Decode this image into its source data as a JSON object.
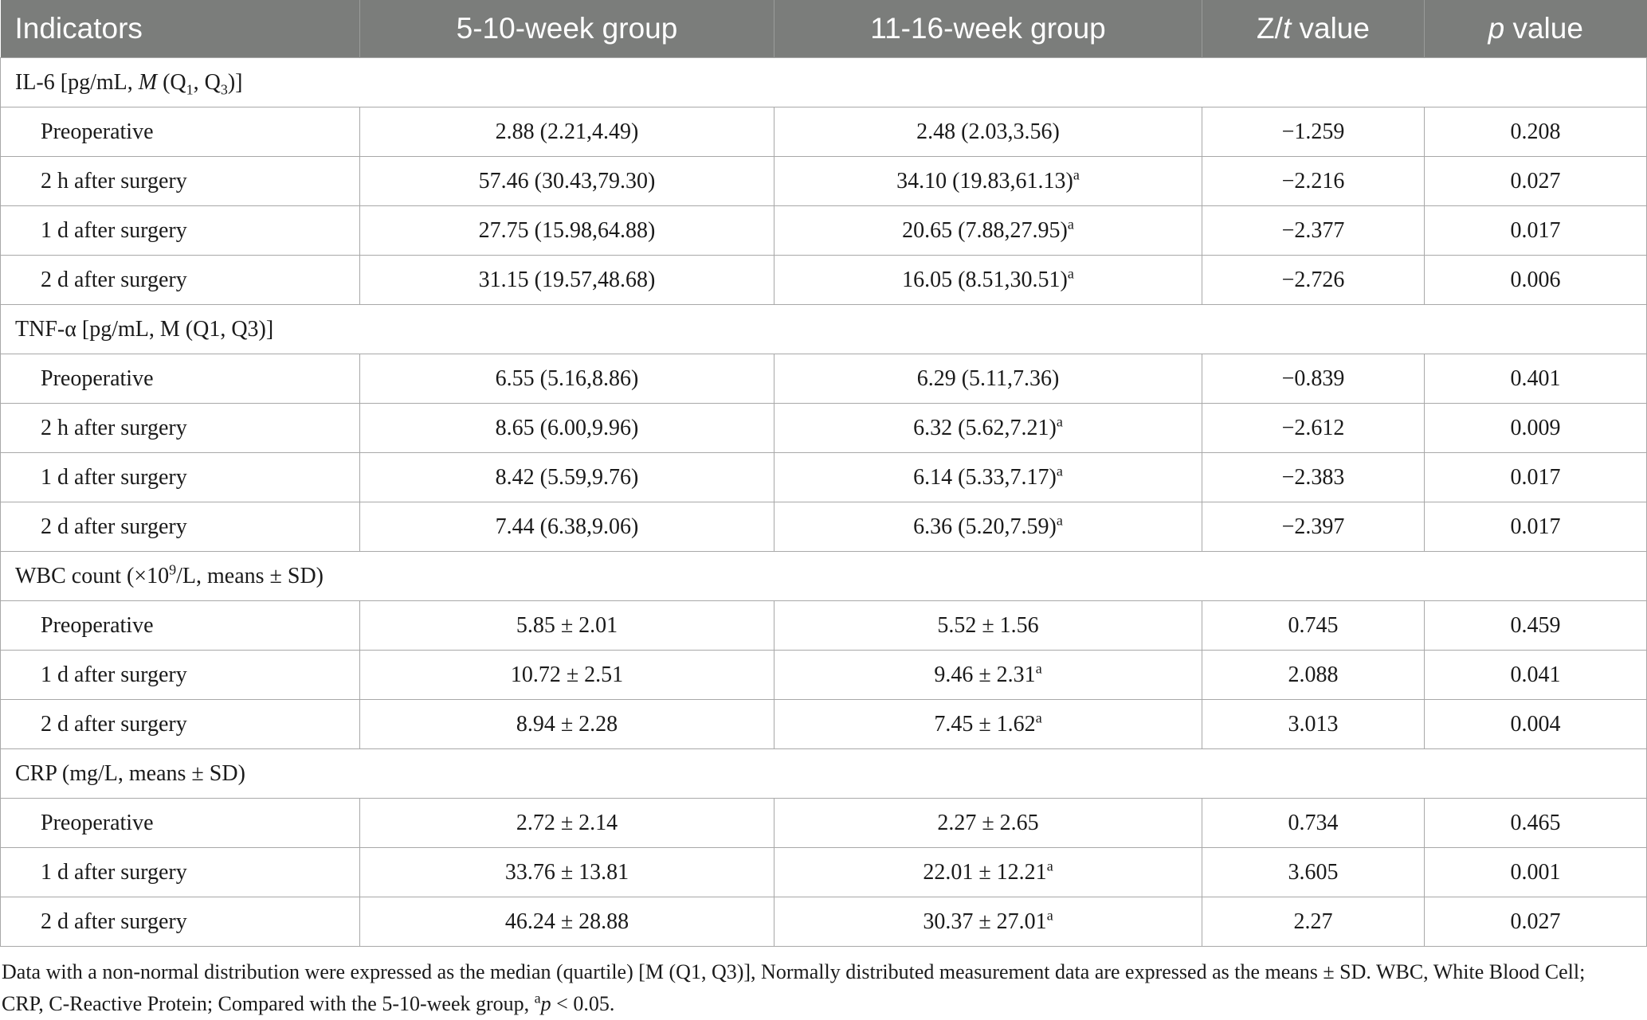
{
  "table": {
    "headers": {
      "indicators": "Indicators",
      "group_a": "5-10-week group",
      "group_b": "11-16-week group",
      "stat_z": "Z/",
      "stat_t": "t",
      "stat_value": " value",
      "p_italic": "p",
      "p_value": " value"
    },
    "sections": [
      {
        "title_parts": {
          "a": "IL-6 [pg/mL, ",
          "m": "M",
          "b": " (Q",
          "s1": "1",
          "c": ", Q",
          "s3": "3",
          "d": ")]"
        },
        "rows": [
          {
            "label": "Preoperative",
            "g1": "2.88 (2.21,4.49)",
            "g2": "2.48 (2.03,3.56)",
            "sup": "",
            "stat": "−1.259",
            "p": "0.208"
          },
          {
            "label": "2 h after surgery",
            "g1": "57.46 (30.43,79.30)",
            "g2": "34.10 (19.83,61.13)",
            "sup": "a",
            "stat": "−2.216",
            "p": "0.027"
          },
          {
            "label": "1 d after surgery",
            "g1": "27.75 (15.98,64.88)",
            "g2": "20.65 (7.88,27.95)",
            "sup": "a",
            "stat": "−2.377",
            "p": "0.017"
          },
          {
            "label": "2 d after surgery",
            "g1": "31.15 (19.57,48.68)",
            "g2": "16.05 (8.51,30.51)",
            "sup": "a",
            "stat": "−2.726",
            "p": "0.006"
          }
        ]
      },
      {
        "title": "TNF-α [pg/mL, M (Q1, Q3)]",
        "rows": [
          {
            "label": "Preoperative",
            "g1": "6.55 (5.16,8.86)",
            "g2": "6.29 (5.11,7.36)",
            "sup": "",
            "stat": "−0.839",
            "p": "0.401"
          },
          {
            "label": "2 h after surgery",
            "g1": "8.65 (6.00,9.96)",
            "g2": "6.32 (5.62,7.21)",
            "sup": "a",
            "stat": "−2.612",
            "p": "0.009"
          },
          {
            "label": "1 d after surgery",
            "g1": "8.42 (5.59,9.76)",
            "g2": "6.14 (5.33,7.17)",
            "sup": "a",
            "stat": "−2.383",
            "p": "0.017"
          },
          {
            "label": "2 d after surgery",
            "g1": "7.44 (6.38,9.06)",
            "g2": "6.36 (5.20,7.59)",
            "sup": "a",
            "stat": "−2.397",
            "p": "0.017"
          }
        ]
      },
      {
        "title_parts": {
          "a": "WBC count (×10",
          "sup": "9",
          "b": "/L, means ± SD)"
        },
        "rows": [
          {
            "label": "Preoperative",
            "g1": "5.85 ± 2.01",
            "g2": "5.52 ± 1.56",
            "sup": "",
            "stat": "0.745",
            "p": "0.459"
          },
          {
            "label": "1 d after surgery",
            "g1": "10.72 ± 2.51",
            "g2": "9.46 ± 2.31",
            "sup": "a",
            "stat": "2.088",
            "p": "0.041"
          },
          {
            "label": "2 d after surgery",
            "g1": "8.94 ± 2.28",
            "g2": "7.45 ± 1.62",
            "sup": "a",
            "stat": "3.013",
            "p": "0.004"
          }
        ]
      },
      {
        "title": "CRP (mg/L, means ± SD)",
        "rows": [
          {
            "label": "Preoperative",
            "g1": "2.72 ± 2.14",
            "g2": "2.27 ± 2.65",
            "sup": "",
            "stat": "0.734",
            "p": "0.465"
          },
          {
            "label": "1 d after surgery",
            "g1": "33.76 ± 13.81",
            "g2": "22.01 ± 12.21",
            "sup": "a",
            "stat": "3.605",
            "p": "0.001"
          },
          {
            "label": "2 d after surgery",
            "g1": "46.24 ± 28.88",
            "g2": "30.37 ± 27.01",
            "sup": "a",
            "stat": "2.27",
            "p": "0.027"
          }
        ]
      }
    ]
  },
  "footnote": {
    "line1": "Data with a non-normal distribution were expressed as the median (quartile) [M (Q1, Q3)], Normally distributed measurement data are expressed as the means ± SD. WBC, White Blood Cell;",
    "line2_start": "CRP, C-Reactive Protein; Compared with the 5-10-week group, ",
    "sup": "a",
    "p": "p",
    "line2_end": " < 0.05."
  }
}
